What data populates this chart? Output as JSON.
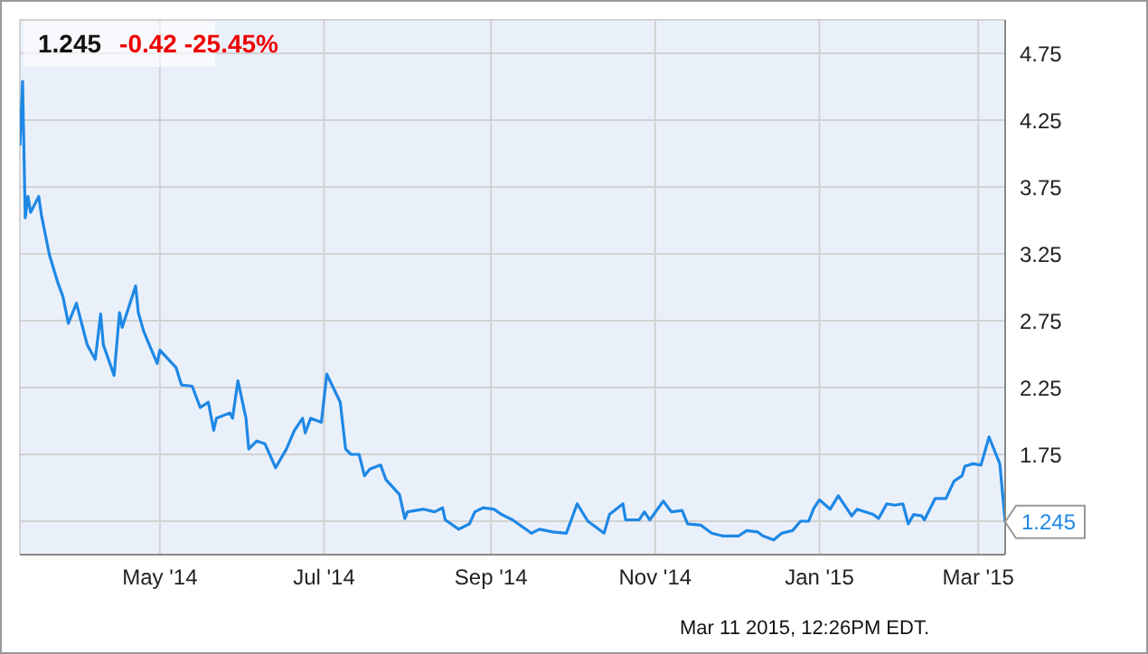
{
  "chart_data": {
    "type": "line",
    "title": "1.245",
    "subtitle": "-0.42 -25.45%",
    "annotations": [
      {
        "text": "1.245",
        "x": "2015-03-11",
        "y": 1.245
      },
      "Mar 11 2015, 12:26PM EDT."
    ],
    "xlim": [
      "2014-03-10",
      "2015-03-11"
    ],
    "xticks": [
      {
        "value": "2014-05-01",
        "label": "May '14"
      },
      {
        "value": "2014-07-01",
        "label": "Jul '14"
      },
      {
        "value": "2014-09-01",
        "label": "Sep '14"
      },
      {
        "value": "2014-11-01",
        "label": "Nov '14"
      },
      {
        "value": "2015-01-01",
        "label": "Jan '15"
      },
      {
        "value": "2015-03-01",
        "label": "Mar '15"
      }
    ],
    "ylim": [
      1.0,
      5.0
    ],
    "yticks": [
      {
        "value": 1.25,
        "label": null
      },
      1.75,
      2.25,
      2.75,
      3.25,
      3.75,
      4.25,
      4.75
    ],
    "grid": true,
    "marker": "none",
    "line_style": "solid",
    "series": [
      {
        "color": "#1e88e5",
        "x": [
          "2014-03-10",
          "2014-03-11",
          "2014-03-12",
          "2014-03-13",
          "2014-03-14",
          "2014-03-17",
          "2014-03-18",
          "2014-03-21",
          "2014-03-24",
          "2014-03-26",
          "2014-03-28",
          "2014-03-31",
          "2014-04-04",
          "2014-04-07",
          "2014-04-09",
          "2014-04-10",
          "2014-04-14",
          "2014-04-16",
          "2014-04-17",
          "2014-04-22",
          "2014-04-23",
          "2014-04-25",
          "2014-04-30",
          "2014-05-01",
          "2014-05-07",
          "2014-05-09",
          "2014-05-13",
          "2014-05-16",
          "2014-05-19",
          "2014-05-21",
          "2014-05-22",
          "2014-05-27",
          "2014-05-28",
          "2014-05-30",
          "2014-06-02",
          "2014-06-03",
          "2014-06-06",
          "2014-06-09",
          "2014-06-13",
          "2014-06-17",
          "2014-06-20",
          "2014-06-23",
          "2014-06-24",
          "2014-06-26",
          "2014-06-30",
          "2014-07-02",
          "2014-07-07",
          "2014-07-09",
          "2014-07-11",
          "2014-07-14",
          "2014-07-16",
          "2014-07-18",
          "2014-07-22",
          "2014-07-24",
          "2014-07-29",
          "2014-07-31",
          "2014-08-01",
          "2014-08-07",
          "2014-08-11",
          "2014-08-14",
          "2014-08-15",
          "2014-08-20",
          "2014-08-24",
          "2014-08-26",
          "2014-08-29",
          "2014-09-02",
          "2014-09-05",
          "2014-09-09",
          "2014-09-16",
          "2014-09-19",
          "2014-09-24",
          "2014-09-29",
          "2014-10-03",
          "2014-10-07",
          "2014-10-13",
          "2014-10-15",
          "2014-10-20",
          "2014-10-21",
          "2014-10-26",
          "2014-10-28",
          "2014-10-30",
          "2014-11-04",
          "2014-11-07",
          "2014-11-11",
          "2014-11-13",
          "2014-11-18",
          "2014-11-22",
          "2014-11-26",
          "2014-12-02",
          "2014-12-05",
          "2014-12-09",
          "2014-12-11",
          "2014-12-15",
          "2014-12-18",
          "2014-12-22",
          "2014-12-25",
          "2014-12-28",
          "2014-12-30",
          "2015-01-01",
          "2015-01-05",
          "2015-01-08",
          "2015-01-13",
          "2015-01-15",
          "2015-01-21",
          "2015-01-23",
          "2015-01-26",
          "2015-01-29",
          "2015-02-01",
          "2015-02-03",
          "2015-02-05",
          "2015-02-08",
          "2015-02-09",
          "2015-02-13",
          "2015-02-17",
          "2015-02-20",
          "2015-02-23",
          "2015-02-24",
          "2015-02-27",
          "2015-03-02",
          "2015-03-05",
          "2015-03-09",
          "2015-03-11"
        ],
        "values": [
          4.06,
          4.54,
          3.52,
          3.68,
          3.56,
          3.68,
          3.54,
          3.24,
          3.04,
          2.93,
          2.73,
          2.88,
          2.57,
          2.46,
          2.8,
          2.57,
          2.34,
          2.81,
          2.7,
          3.01,
          2.81,
          2.67,
          2.43,
          2.53,
          2.4,
          2.27,
          2.26,
          2.1,
          2.14,
          1.93,
          2.02,
          2.06,
          2.02,
          2.3,
          2.02,
          1.79,
          1.85,
          1.83,
          1.65,
          1.79,
          1.93,
          2.02,
          1.91,
          2.02,
          1.99,
          2.35,
          2.14,
          1.79,
          1.75,
          1.75,
          1.59,
          1.64,
          1.67,
          1.56,
          1.45,
          1.27,
          1.32,
          1.34,
          1.32,
          1.35,
          1.26,
          1.19,
          1.23,
          1.32,
          1.35,
          1.34,
          1.3,
          1.26,
          1.16,
          1.19,
          1.17,
          1.16,
          1.38,
          1.25,
          1.16,
          1.3,
          1.38,
          1.26,
          1.26,
          1.32,
          1.26,
          1.4,
          1.32,
          1.33,
          1.23,
          1.22,
          1.16,
          1.14,
          1.14,
          1.18,
          1.17,
          1.14,
          1.11,
          1.16,
          1.18,
          1.25,
          1.25,
          1.35,
          1.41,
          1.34,
          1.44,
          1.29,
          1.34,
          1.3,
          1.27,
          1.38,
          1.37,
          1.38,
          1.23,
          1.3,
          1.29,
          1.26,
          1.42,
          1.42,
          1.55,
          1.59,
          1.66,
          1.68,
          1.67,
          1.88,
          1.68,
          1.245
        ]
      }
    ]
  }
}
